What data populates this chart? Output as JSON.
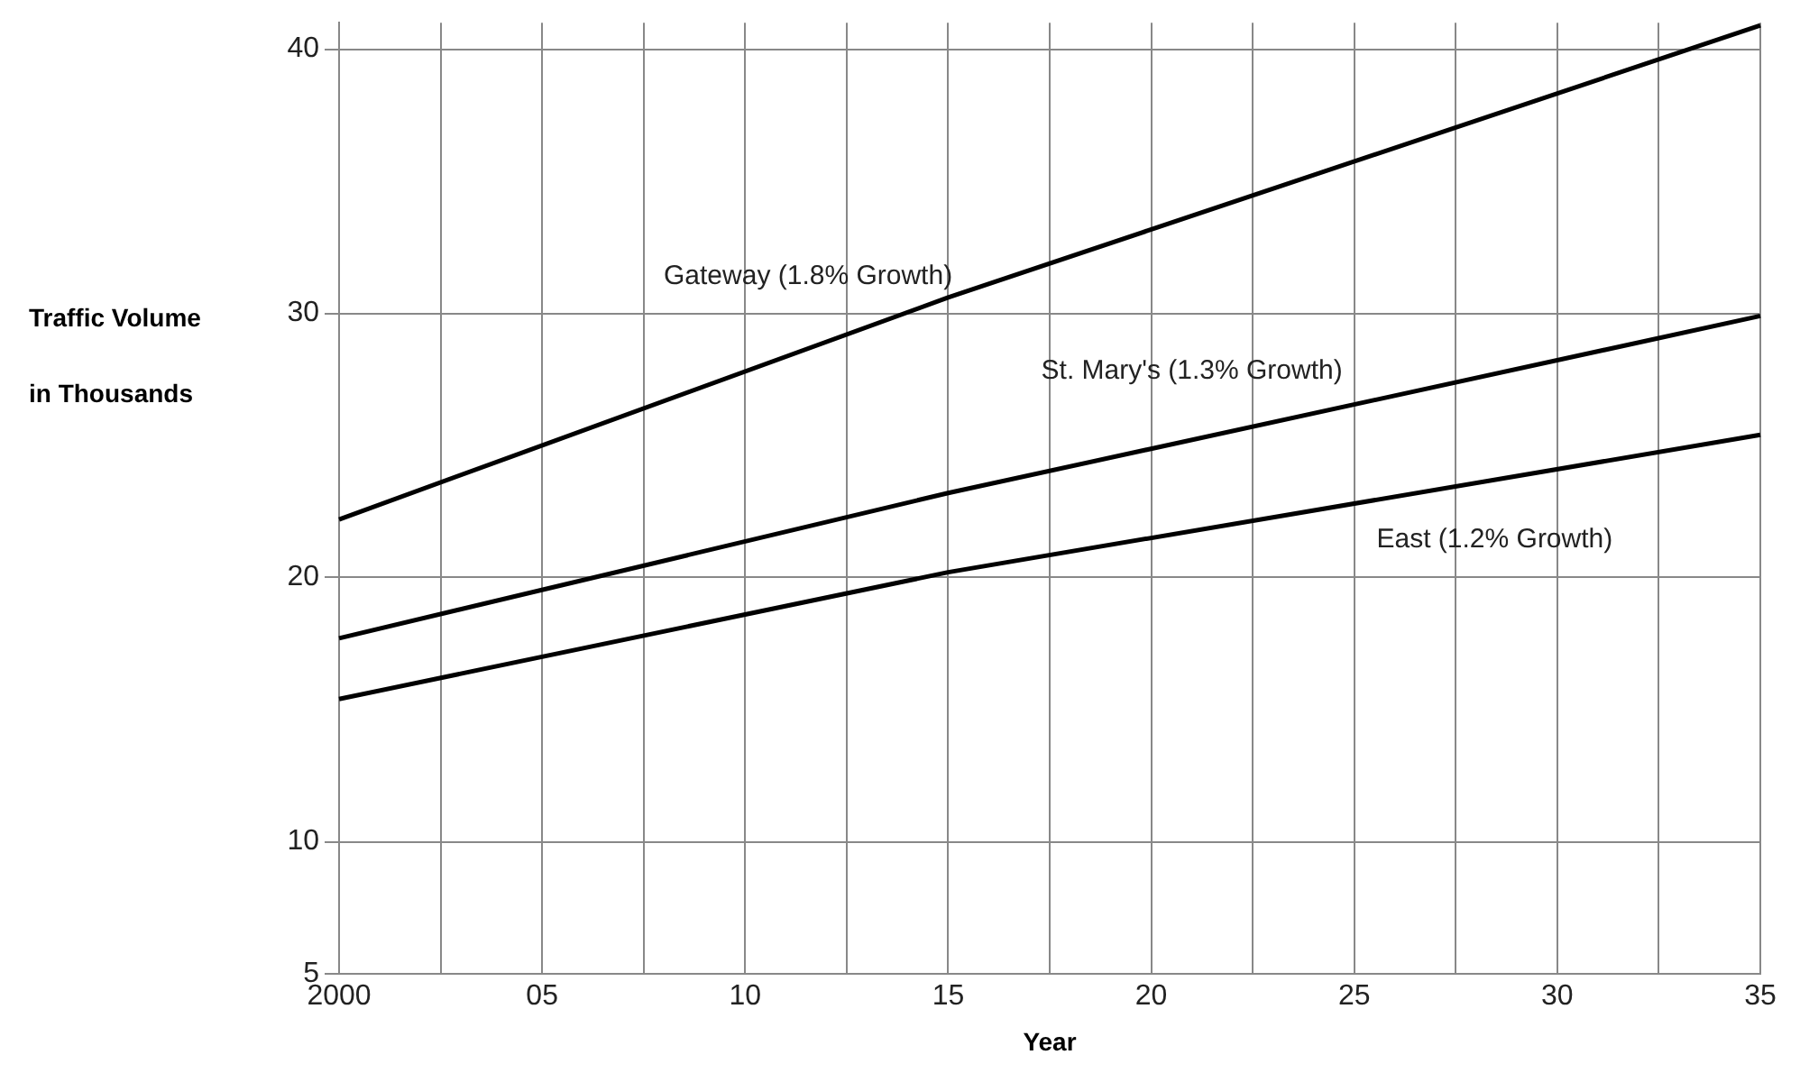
{
  "chart_data": {
    "type": "line",
    "xlabel": "Year",
    "ylabel": "Traffic Volume\nin Thousands",
    "x": [
      2000,
      2015,
      2035
    ],
    "series": [
      {
        "name": "Gateway (1.8% Growth)",
        "color": "#000000",
        "values": [
          22.2,
          30.6,
          40.9
        ]
      },
      {
        "name": "St. Mary's (1.3% Growth)",
        "color": "#000000",
        "values": [
          17.7,
          23.2,
          29.9
        ]
      },
      {
        "name": "East (1.2% Growth)",
        "color": "#000000",
        "values": [
          15.4,
          20.2,
          25.4
        ]
      }
    ],
    "xlim": [
      2000,
      2035
    ],
    "xticks": [
      2000,
      {
        "value": 2002.5,
        "label": null
      },
      {
        "value": 2005,
        "label": "05"
      },
      {
        "value": 2007.5,
        "label": null
      },
      {
        "value": 2010,
        "label": "10"
      },
      {
        "value": 2012.5,
        "label": null
      },
      {
        "value": 2015,
        "label": "15"
      },
      {
        "value": 2017.5,
        "label": null
      },
      {
        "value": 2020,
        "label": "20"
      },
      {
        "value": 2022.5,
        "label": null
      },
      {
        "value": 2025,
        "label": "25"
      },
      {
        "value": 2027.5,
        "label": null
      },
      {
        "value": 2030,
        "label": "30"
      },
      {
        "value": 2032.5,
        "label": null
      },
      {
        "value": 2035,
        "label": "35"
      }
    ],
    "ylim": [
      5,
      41
    ],
    "yticks": [
      5,
      10,
      20,
      30,
      40
    ],
    "grid": true,
    "legend": false,
    "marker": "none",
    "line_style": "solid"
  }
}
